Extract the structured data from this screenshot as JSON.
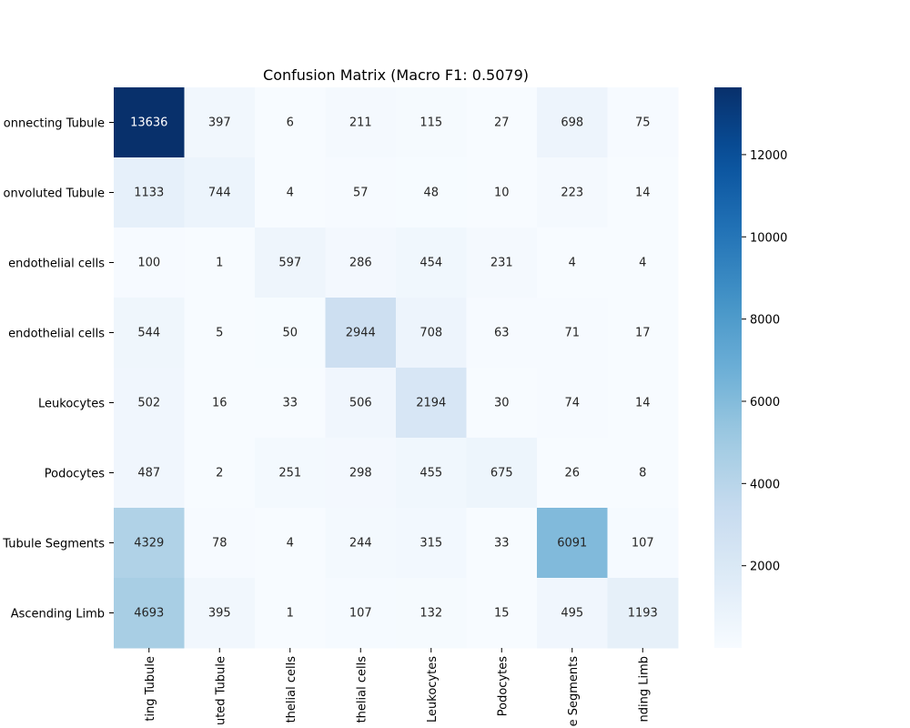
{
  "chart_data": {
    "type": "heatmap",
    "title": "Confusion Matrix (Macro F1: 0.5079)",
    "xlabel": "",
    "ylabel": "",
    "row_labels": [
      "onnecting Tubule",
      "onvoluted Tubule",
      "endothelial cells",
      "endothelial cells",
      "Leukocytes",
      "Podocytes",
      "Tubule Segments",
      "Ascending Limb"
    ],
    "col_labels": [
      "ting Tubule",
      "uted Tubule",
      "thelial cells",
      "thelial cells",
      "Leukocytes",
      "Podocytes",
      "e Segments",
      "nding Limb"
    ],
    "values": [
      [
        13636,
        397,
        6,
        211,
        115,
        27,
        698,
        75
      ],
      [
        1133,
        744,
        4,
        57,
        48,
        10,
        223,
        14
      ],
      [
        100,
        1,
        597,
        286,
        454,
        231,
        4,
        4
      ],
      [
        544,
        5,
        50,
        2944,
        708,
        63,
        71,
        17
      ],
      [
        502,
        16,
        33,
        506,
        2194,
        30,
        74,
        14
      ],
      [
        487,
        2,
        251,
        298,
        455,
        675,
        26,
        8
      ],
      [
        4329,
        78,
        4,
        244,
        315,
        33,
        6091,
        107
      ],
      [
        4693,
        395,
        1,
        107,
        132,
        15,
        495,
        1193
      ]
    ],
    "colormap": "Blues",
    "vmin": 1,
    "vmax": 13636,
    "colorbar_ticks": [
      2000,
      4000,
      6000,
      8000,
      10000,
      12000
    ],
    "colors": {
      "low": "#f7fbff",
      "high": "#08306b",
      "text_dark": "#262626",
      "text_light": "#ffffff"
    }
  }
}
